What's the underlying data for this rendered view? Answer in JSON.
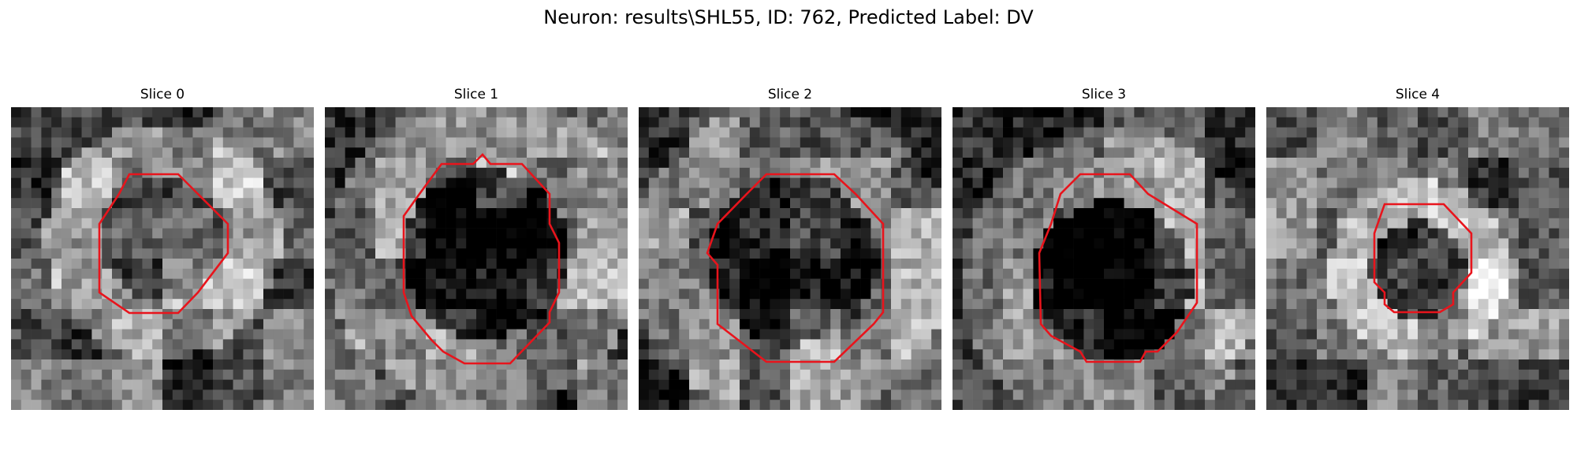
{
  "figure": {
    "title": "Neuron: results\\SHL55, ID: 762, Predicted Label: DV"
  },
  "slices": [
    {
      "label": "Slice 0",
      "seed": 11,
      "center_brightness": 0.38,
      "ring_brightness": 0.66,
      "contour_color": "#e8141c"
    },
    {
      "label": "Slice 1",
      "seed": 23,
      "center_brightness": 0.08,
      "ring_brightness": 0.55,
      "contour_color": "#e8141c"
    },
    {
      "label": "Slice 2",
      "seed": 37,
      "center_brightness": 0.16,
      "ring_brightness": 0.52,
      "contour_color": "#e8141c"
    },
    {
      "label": "Slice 3",
      "seed": 53,
      "center_brightness": 0.05,
      "ring_brightness": 0.55,
      "contour_color": "#e8141c"
    },
    {
      "label": "Slice 4",
      "seed": 71,
      "center_brightness": 0.22,
      "ring_brightness": 0.72,
      "contour_color": "#e8141c"
    }
  ]
}
